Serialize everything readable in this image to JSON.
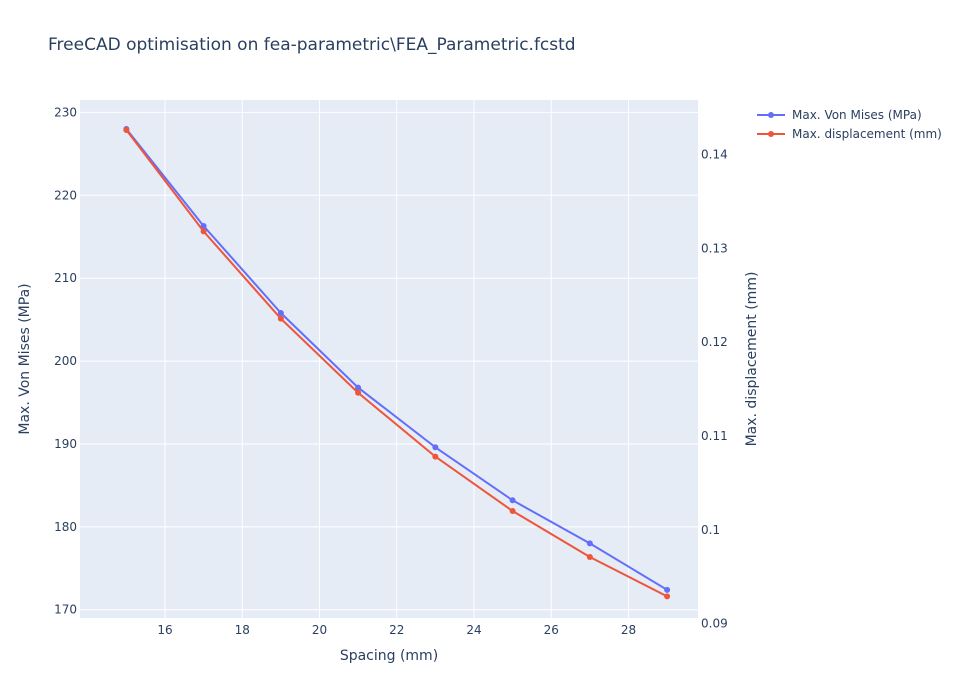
{
  "chart_data": {
    "type": "line",
    "title": "FreeCAD optimisation on fea-parametric\\FEA_Parametric.fcstd",
    "xlabel": "Spacing (mm)",
    "ylabel": "Max. Von Mises (MPa)",
    "y2label": "Max. displacement (mm)",
    "x": [
      15,
      17,
      19,
      21,
      23,
      25,
      27,
      29
    ],
    "xlim": [
      13.8,
      29.8
    ],
    "ylim": [
      169,
      231.5
    ],
    "y2lim": [
      0.0906,
      0.1458
    ],
    "x_ticks": [
      16,
      18,
      20,
      22,
      24,
      26,
      28
    ],
    "y_ticks": [
      170,
      180,
      190,
      200,
      210,
      220,
      230
    ],
    "y2_ticks": [
      0.09,
      0.1,
      0.11,
      0.12,
      0.13,
      0.14
    ],
    "y2_tick_labels": [
      "0.09",
      "0.1",
      "0.11",
      "0.12",
      "0.13",
      "0.14"
    ],
    "grid": true,
    "legend_position": "top-right outside",
    "series": [
      {
        "name": "Max. Von Mises (MPa)",
        "axis": "y",
        "color": "#636efa",
        "values": [
          228.0,
          216.3,
          205.8,
          196.8,
          189.6,
          183.2,
          178.0,
          172.4
        ]
      },
      {
        "name": "Max. displacement (mm)",
        "axis": "y2",
        "color": "#ef553b",
        "values": [
          0.1426,
          0.1318,
          0.1225,
          0.1146,
          0.1078,
          0.102,
          0.0971,
          0.0929
        ]
      }
    ]
  },
  "colors": {
    "plot_bg": "#e5ecf6",
    "grid": "#ffffff",
    "text": "#2a3f5f"
  }
}
